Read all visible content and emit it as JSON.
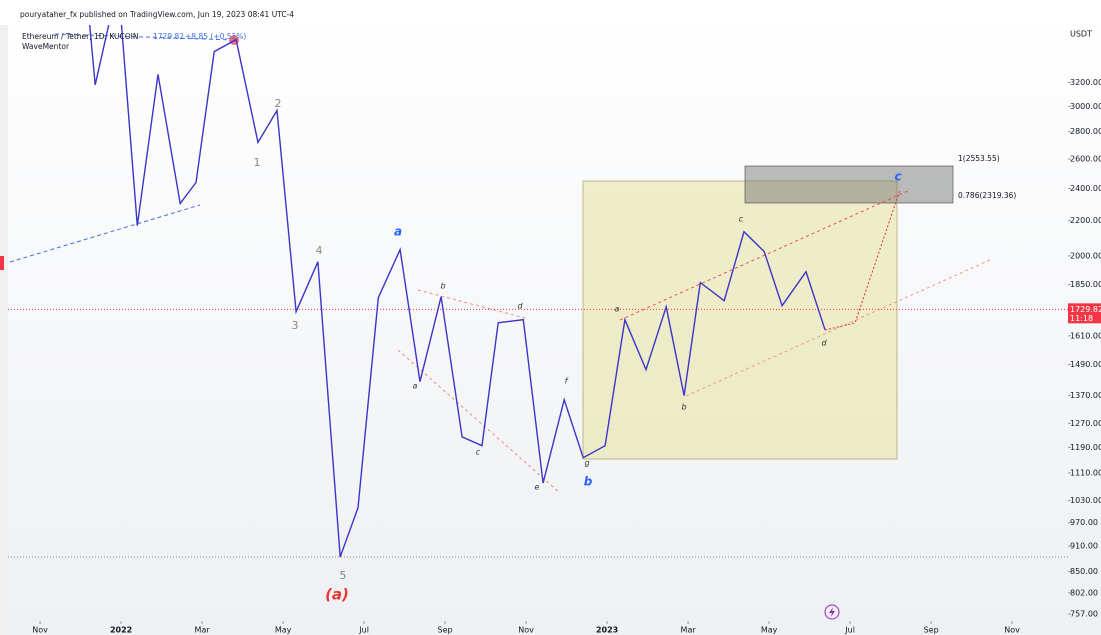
{
  "header": "pouryataher_fx published on TradingView.com, Jun 19, 2023 08:41 UTC-4",
  "chart_data": {
    "type": "line",
    "symbol": "Ethereum / Tether, 1D, KUCOIN",
    "last_price": 1729.82,
    "change": "+8.85 (+0.51%)",
    "indicator": "WaveMentor",
    "currency": "USDT",
    "countdown": "11:18",
    "log_scale": true,
    "color": "#3b35c8",
    "x": [
      1.19,
      1.36,
      1.78,
      1.98,
      2.4,
      2.91,
      3.46,
      3.85,
      4.3,
      4.84,
      5.38,
      5.85,
      6.32,
      6.86,
      7.41,
      7.85,
      8.35,
      8.89,
      9.38,
      9.9,
      10.42,
      10.91,
      11.31,
      11.93,
      12.42,
      12.94,
      13.41,
      13.95,
      14.44,
      14.96,
      15.46,
      15.9,
      16.3,
      16.89,
      17.38,
      17.88,
      18.32,
      18.91,
      19.38
    ],
    "values": [
      3900,
      3180,
      3900,
      3900,
      2170,
      3270,
      2305,
      2440,
      3480,
      3595,
      2720,
      2966,
      1719,
      1968,
      884,
      1010,
      1785,
      2034,
      1422,
      1790,
      1224,
      1195,
      1668,
      1682,
      1080,
      1354,
      1157,
      1195,
      1682,
      1469,
      1742,
      1369,
      1860,
      1771,
      2135,
      2023,
      1747,
      1916,
      1637
    ],
    "xlim": [
      -0.99,
      25.38
    ],
    "ylim": [
      745,
      3740
    ],
    "xticks": [
      {
        "value": 0,
        "label": "Nov"
      },
      {
        "value": 2,
        "label": "2022"
      },
      {
        "value": 4,
        "label": "Mar"
      },
      {
        "value": 6,
        "label": "May"
      },
      {
        "value": 8,
        "label": "Jul"
      },
      {
        "value": 10,
        "label": "Sep"
      },
      {
        "value": 12,
        "label": "Nov"
      },
      {
        "value": 14,
        "label": "2023"
      },
      {
        "value": 16,
        "label": "Mar"
      },
      {
        "value": 18,
        "label": "May"
      },
      {
        "value": 20,
        "label": "Jul"
      },
      {
        "value": 22,
        "label": "Sep"
      },
      {
        "value": 24,
        "label": "Nov"
      }
    ],
    "yticks": [
      {
        "value": 3200,
        "label": "3200.00"
      },
      {
        "value": 3000,
        "label": "3000.00"
      },
      {
        "value": 2800,
        "label": "2800.00"
      },
      {
        "value": 2600,
        "label": "2600.00"
      },
      {
        "value": 2400,
        "label": "2400.00"
      },
      {
        "value": 2200,
        "label": "2200.00"
      },
      {
        "value": 2000,
        "label": "2000.00"
      },
      {
        "value": 1850,
        "label": "1850.00"
      },
      {
        "value": 1610,
        "label": "1610.00"
      },
      {
        "value": 1490,
        "label": "1490.00"
      },
      {
        "value": 1370,
        "label": "1370.00"
      },
      {
        "value": 1270,
        "label": "1270.00"
      },
      {
        "value": 1190,
        "label": "1190.00"
      },
      {
        "value": 1110,
        "label": "1110.00"
      },
      {
        "value": 1030,
        "label": "1030.00"
      },
      {
        "value": 970,
        "label": "970.00"
      },
      {
        "value": 910,
        "label": "910.00"
      },
      {
        "value": 850,
        "label": "850.00"
      },
      {
        "value": 802,
        "label": "802.00"
      },
      {
        "value": 757,
        "label": "757.00"
      }
    ],
    "fib_levels": [
      "1(2553.55)",
      "0.786(2319.36)"
    ],
    "wave_labels": [
      "1",
      "2",
      "3",
      "4",
      "5",
      "(a)",
      "a",
      "b",
      "c",
      "b",
      "d",
      "a",
      "c",
      "e",
      "f",
      "g",
      "a",
      "b",
      "c",
      "d"
    ]
  }
}
